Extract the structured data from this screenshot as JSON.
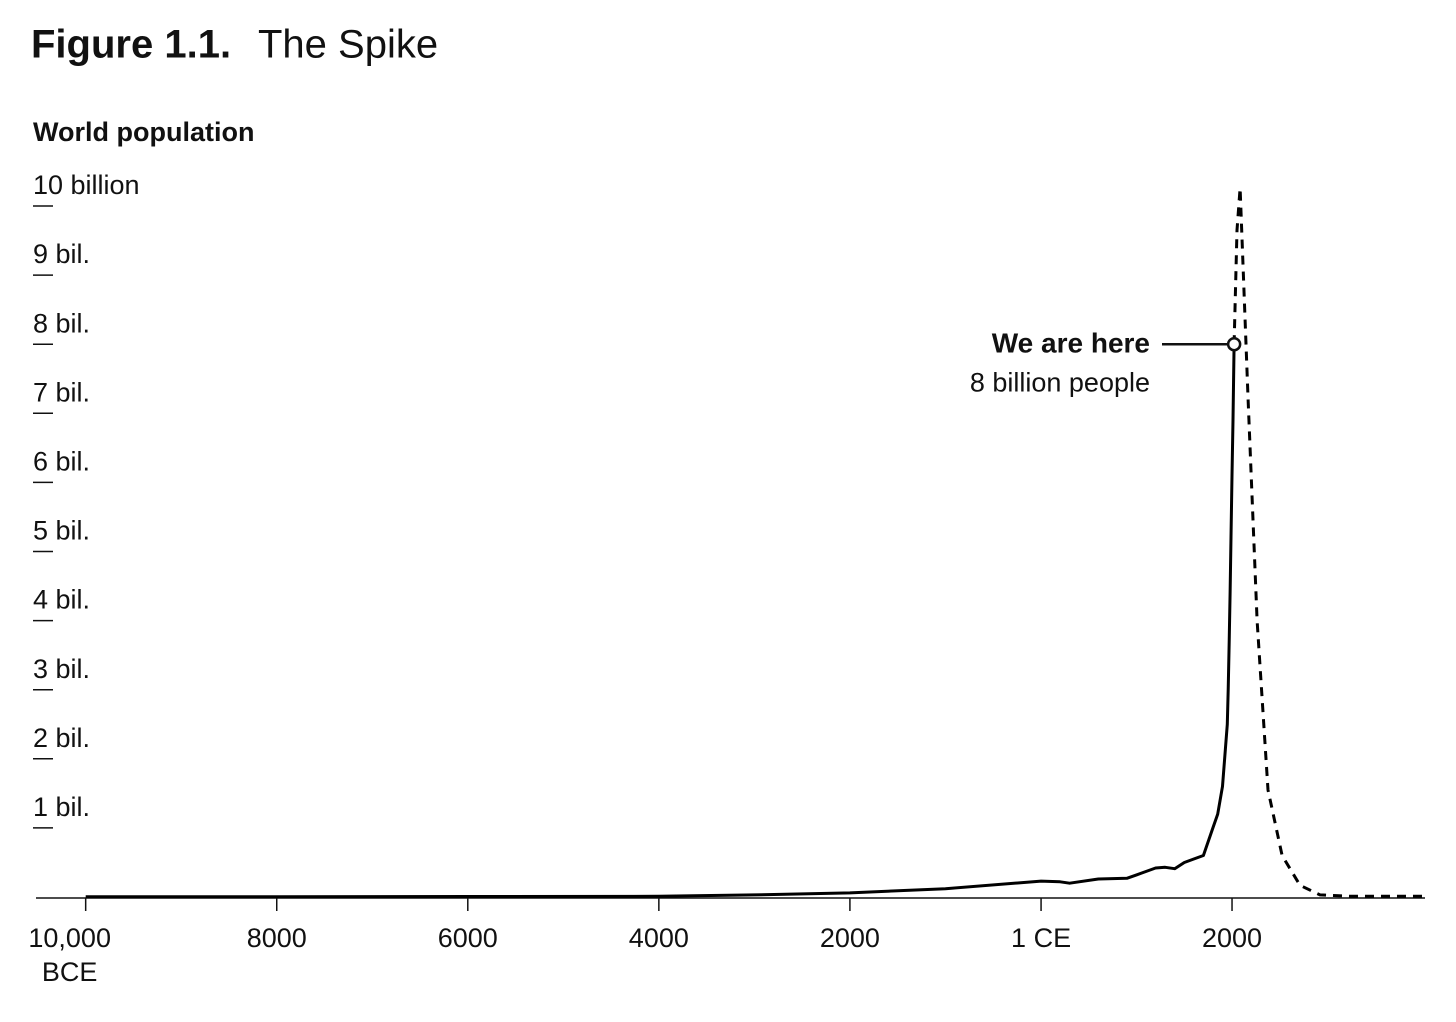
{
  "chart_data": {
    "type": "line",
    "figure_label": "Figure 1.1.",
    "title": "The Spike",
    "y_axis_label": "World population",
    "xlim": [
      -10520,
      4020
    ],
    "ylim": [
      0,
      10
    ],
    "xticks": [
      {
        "value": -10000,
        "label": "10,000 BCE"
      },
      {
        "value": -8000,
        "label": "8000"
      },
      {
        "value": -6000,
        "label": "6000"
      },
      {
        "value": -4000,
        "label": "4000"
      },
      {
        "value": -2000,
        "label": "2000"
      },
      {
        "value": 1,
        "label": "1 CE"
      },
      {
        "value": 2000,
        "label": "2000"
      }
    ],
    "yticks": [
      {
        "value": 1,
        "label": "1 bil."
      },
      {
        "value": 2,
        "label": "2 bil."
      },
      {
        "value": 3,
        "label": "3 bil."
      },
      {
        "value": 4,
        "label": "4 bil."
      },
      {
        "value": 5,
        "label": "5 bil."
      },
      {
        "value": 6,
        "label": "6 bil."
      },
      {
        "value": 7,
        "label": "7 bil."
      },
      {
        "value": 8,
        "label": "8 bil."
      },
      {
        "value": 9,
        "label": "9 bil."
      },
      {
        "value": 10,
        "label": "10 billion"
      }
    ],
    "series": [
      {
        "color": "#000000",
        "dashed": false,
        "x": [
          -10000,
          -8000,
          -6000,
          -4000,
          -3000,
          -2000,
          -1000,
          1,
          200,
          300,
          600,
          900,
          1000,
          1200,
          1300,
          1400,
          1500,
          1600,
          1700,
          1800,
          1850,
          1900,
          1950,
          1960,
          1970,
          1980,
          1990,
          2000,
          2010,
          2022
        ],
        "values": [
          0.004,
          0.005,
          0.007,
          0.01,
          0.03,
          0.06,
          0.12,
          0.23,
          0.22,
          0.2,
          0.26,
          0.27,
          0.32,
          0.42,
          0.43,
          0.41,
          0.5,
          0.55,
          0.6,
          1.0,
          1.2,
          1.6,
          2.5,
          3.0,
          3.7,
          4.4,
          5.3,
          6.1,
          6.9,
          8.0
        ]
      },
      {
        "color": "#000000",
        "dashed": true,
        "x": [
          2022,
          2052,
          2084,
          2168,
          2262,
          2377,
          2524,
          2712,
          2921,
          3235,
          4020
        ],
        "values": [
          8.0,
          9.65,
          10.26,
          7.2,
          4.0,
          1.55,
          0.6,
          0.17,
          0.03,
          0.01,
          0.01
        ]
      }
    ],
    "annotation": {
      "text": "We are here",
      "subtext": "8 billion people",
      "x": 2022,
      "y": 8
    }
  }
}
